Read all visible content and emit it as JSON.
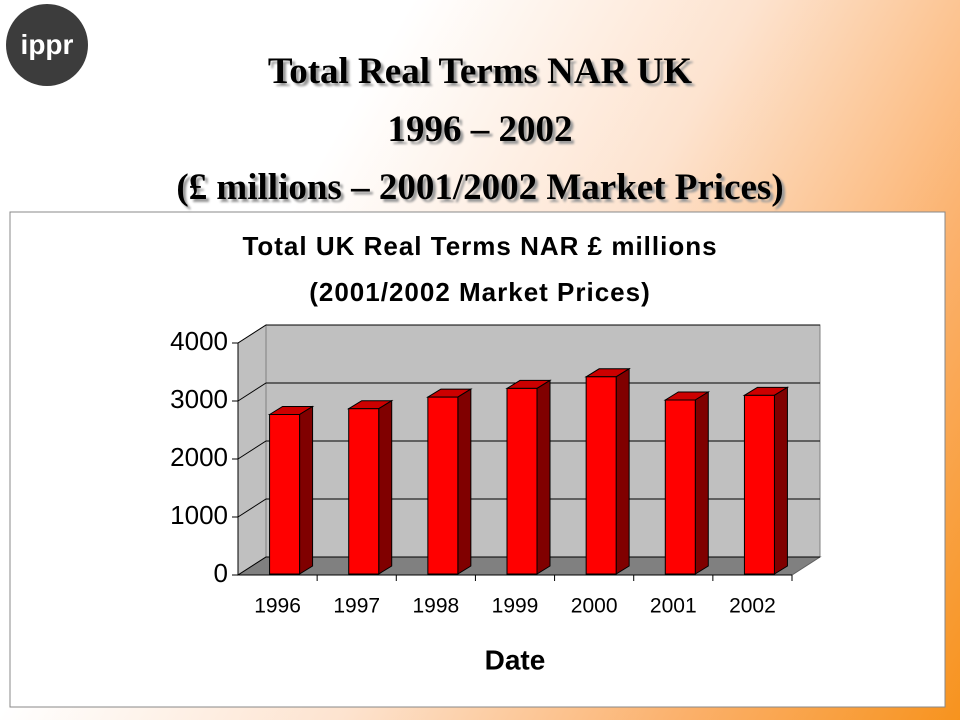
{
  "slide": {
    "logo": "ippr",
    "title": [
      "Total Real Terms NAR UK",
      "1996 – 2002",
      "(£ millions – 2001/2002 Market Prices)"
    ]
  },
  "chart_data": {
    "type": "bar",
    "title": [
      "Total UK Real Terms NAR £ millions",
      "(2001/2002 Market Prices)"
    ],
    "x_label": "Date",
    "categories": [
      "1996",
      "1997",
      "1998",
      "1999",
      "2000",
      "2001",
      "2002"
    ],
    "values": [
      2750,
      2850,
      3050,
      3200,
      3400,
      3000,
      3080
    ],
    "color": "#ff0000",
    "ylim": [
      0,
      4000
    ],
    "yticks": [
      0,
      1000,
      2000,
      3000,
      4000
    ],
    "grid": true
  }
}
